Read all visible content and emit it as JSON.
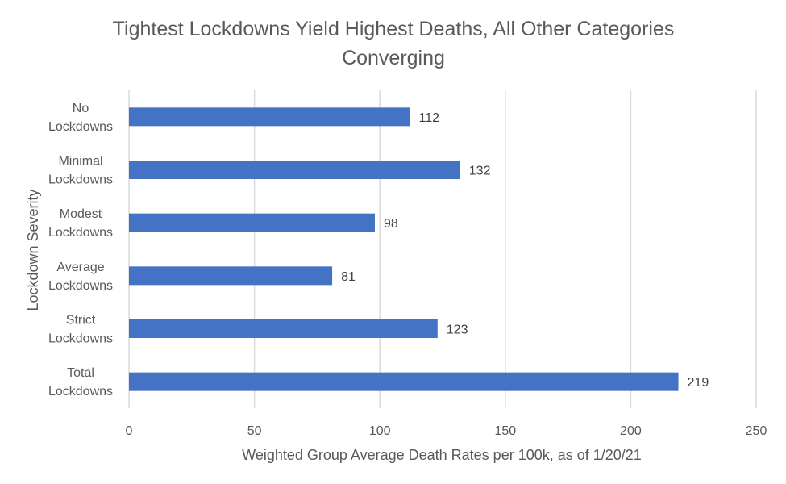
{
  "chart_data": {
    "type": "bar",
    "orientation": "horizontal",
    "title": "Tightest Lockdowns Yield Highest Deaths, All Other Categories Converging",
    "title_lines": [
      "Tightest Lockdowns Yield Highest Deaths, All Other Categories",
      "Converging"
    ],
    "xlabel": "Weighted Group Average Death Rates per 100k, as of 1/20/21",
    "ylabel": "Lockdown Severity",
    "categories": [
      [
        "No",
        "Lockdowns"
      ],
      [
        "Minimal",
        "Lockdowns"
      ],
      [
        "Modest",
        "Lockdowns"
      ],
      [
        "Average",
        "Lockdowns"
      ],
      [
        "Strict",
        "Lockdowns"
      ],
      [
        "Total",
        "Lockdowns"
      ]
    ],
    "values": [
      112,
      132,
      98,
      81,
      123,
      219
    ],
    "xlim": [
      0,
      250
    ],
    "xticks": [
      0,
      50,
      100,
      150,
      200,
      250
    ],
    "gridlines": "vertical",
    "data_labels": true,
    "legend": "none",
    "bar_color": "#4472C4",
    "grid_color": "#D9D9D9",
    "text_color": "#595959"
  }
}
